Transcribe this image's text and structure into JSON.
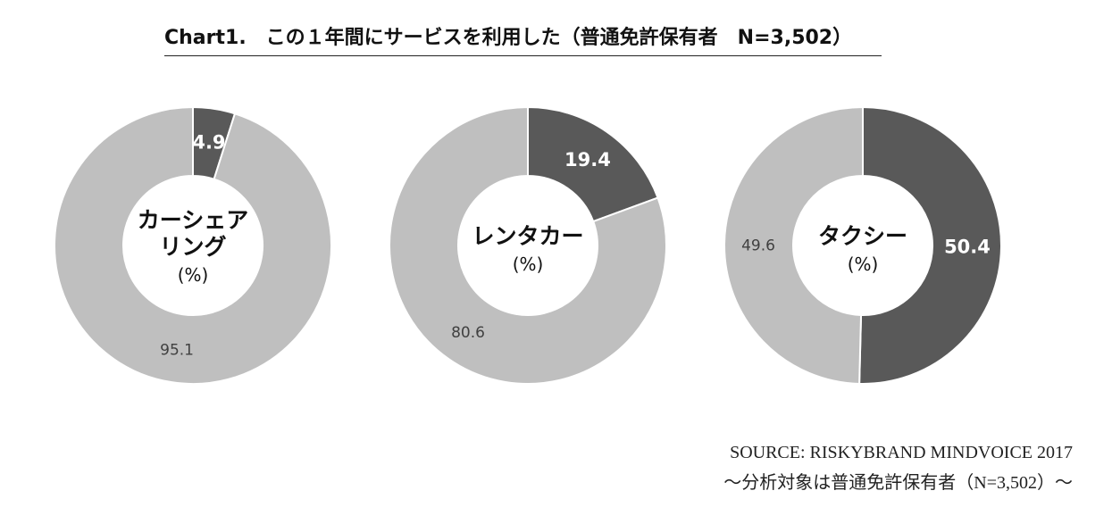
{
  "title": "Chart1.　この１年間にサービスを利用した（普通免許保有者　N=3,502）",
  "source": {
    "line1": "SOURCE: RISKYBRAND MINDVOICE 2017",
    "line2": "～分析対象は普通免許保有者（N=3,502）～"
  },
  "colors": {
    "dark": "#595959",
    "light": "#bfbfbf",
    "center": "#ffffff"
  },
  "chart_data": [
    {
      "type": "pie",
      "donut": true,
      "center_label": [
        "カーシェア",
        "リング",
        "(%)"
      ],
      "slices": [
        {
          "value": 4.9,
          "label": "4.9",
          "color": "dark"
        },
        {
          "value": 95.1,
          "label": "95.1",
          "color": "light"
        }
      ]
    },
    {
      "type": "pie",
      "donut": true,
      "center_label": [
        "レンタカー",
        "(%)"
      ],
      "slices": [
        {
          "value": 19.4,
          "label": "19.4",
          "color": "dark"
        },
        {
          "value": 80.6,
          "label": "80.6",
          "color": "light"
        }
      ]
    },
    {
      "type": "pie",
      "donut": true,
      "center_label": [
        "タクシー",
        "(%)"
      ],
      "slices": [
        {
          "value": 50.4,
          "label": "50.4",
          "color": "dark"
        },
        {
          "value": 49.6,
          "label": "49.6",
          "color": "light"
        }
      ]
    }
  ]
}
